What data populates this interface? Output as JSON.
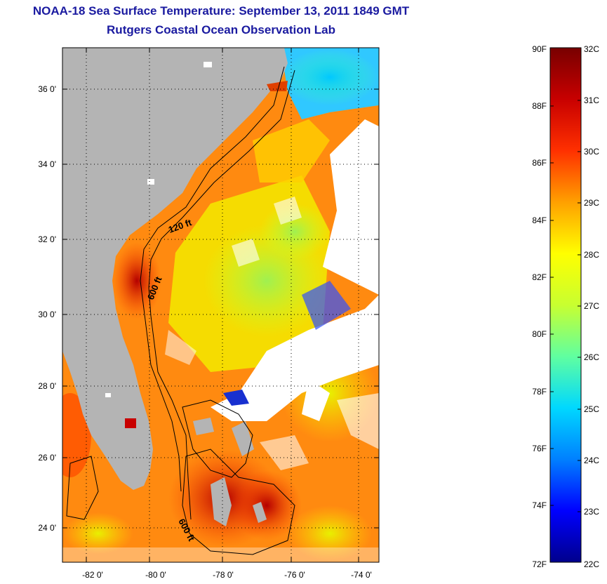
{
  "header": {
    "title": "NOAA-18 Sea Surface Temperature:  September 13, 2011 1849 GMT",
    "subtitle": "Rutgers Coastal Ocean Observation Lab",
    "color": "#1a1aa0"
  },
  "map": {
    "lat_ticks": [
      "36 0'",
      "34 0'",
      "32 0'",
      "30 0'",
      "28 0'",
      "26 0'",
      "24 0'"
    ],
    "lon_ticks": [
      "-82 0'",
      "-80 0'",
      "-78 0'",
      "-76 0'",
      "-74 0'"
    ],
    "contour_labels": [
      "120 ft",
      "600 ft",
      "600 ft"
    ],
    "land_color": "#b4b4b4",
    "cloud_color": "#ffffff"
  },
  "colorbar": {
    "fahrenheit_labels": [
      "90F",
      "88F",
      "86F",
      "84F",
      "82F",
      "80F",
      "78F",
      "76F",
      "74F",
      "72F"
    ],
    "celsius_labels": [
      "32C",
      "31C",
      "30C",
      "29C",
      "28C",
      "27C",
      "26C",
      "25C",
      "24C",
      "23C",
      "22C"
    ],
    "colors": [
      "#00008c",
      "#0000ff",
      "#0080ff",
      "#00d8ff",
      "#60ffa0",
      "#c8ff30",
      "#ffff00",
      "#ffa000",
      "#ff3000",
      "#c80000",
      "#780000"
    ]
  }
}
